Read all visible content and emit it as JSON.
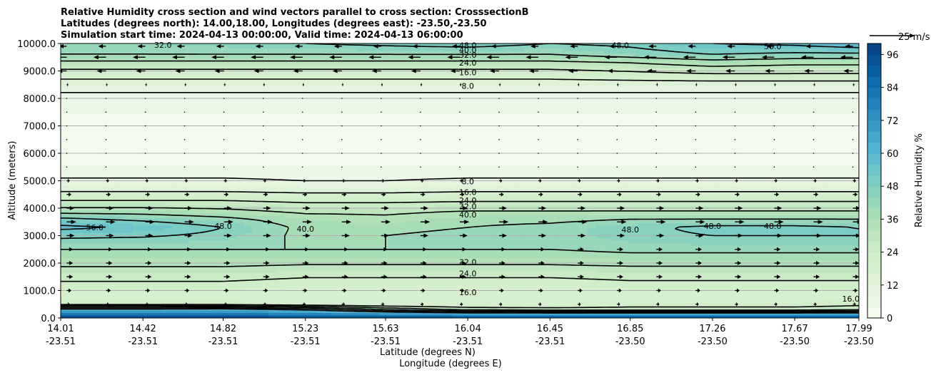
{
  "chart_data": {
    "type": "heatmap",
    "title_lines": [
      "Relative Humidity cross section and wind vectors parallel to cross section: CrosssectionB",
      "Latitudes (degrees north): 14.00,18.00, Longitudes (degrees east): -23.50,-23.50",
      "Simulation start time: 2024-04-13 00:00:00, Valid time: 2024-04-13 06:00:00"
    ],
    "xlabel_lat": "Latitude (degrees N)",
    "xlabel_lon": "Longitude (degrees E)",
    "ylabel": "Altitude (meters)",
    "xlim": [
      14.01,
      17.99
    ],
    "ylim": [
      0,
      10000
    ],
    "grid": "horizontal",
    "x_ticks": [
      {
        "lat": 14.01,
        "lat_label": "14.01",
        "lon_label": "-23.51"
      },
      {
        "lat": 14.42,
        "lat_label": "14.42",
        "lon_label": "-23.51"
      },
      {
        "lat": 14.82,
        "lat_label": "14.82",
        "lon_label": "-23.51"
      },
      {
        "lat": 15.23,
        "lat_label": "15.23",
        "lon_label": "-23.51"
      },
      {
        "lat": 15.63,
        "lat_label": "15.63",
        "lon_label": "-23.51"
      },
      {
        "lat": 16.04,
        "lat_label": "16.04",
        "lon_label": "-23.51"
      },
      {
        "lat": 16.45,
        "lat_label": "16.45",
        "lon_label": "-23.51"
      },
      {
        "lat": 16.85,
        "lat_label": "16.85",
        "lon_label": "-23.50"
      },
      {
        "lat": 17.26,
        "lat_label": "17.26",
        "lon_label": "-23.50"
      },
      {
        "lat": 17.67,
        "lat_label": "17.67",
        "lon_label": "-23.50"
      },
      {
        "lat": 17.99,
        "lat_label": "17.99",
        "lon_label": "-23.50"
      }
    ],
    "y_ticks": [
      0,
      1000,
      2000,
      3000,
      4000,
      5000,
      6000,
      7000,
      8000,
      9000,
      10000
    ],
    "y_tick_labels": [
      "0.0",
      "1000.0",
      "2000.0",
      "3000.0",
      "4000.0",
      "5000.0",
      "6000.0",
      "7000.0",
      "8000.0",
      "9000.0",
      "10000.0"
    ],
    "colorbar": {
      "label": "Relative Humidity %",
      "min": 0,
      "max": 100,
      "ticks": [
        0,
        12,
        24,
        36,
        48,
        60,
        72,
        84,
        96
      ],
      "tick_labels": [
        "0",
        "12",
        "24",
        "36",
        "48",
        "60",
        "72",
        "84",
        "96"
      ],
      "levels": 25,
      "colors": [
        "#f7fcf0",
        "#e0f3db",
        "#ccebc5",
        "#a8ddb5",
        "#7bccc4",
        "#4eb3d3",
        "#2b8cbe",
        "#0868ac",
        "#084081"
      ]
    },
    "wind_key": {
      "label": "25 m/s",
      "speed": 25
    },
    "rh_field": {
      "alt": [
        0,
        300,
        500,
        800,
        1200,
        1600,
        2000,
        2500,
        3000,
        3300,
        3600,
        3900,
        4200,
        4600,
        5000,
        5500,
        6000,
        7000,
        8000,
        8500,
        8900,
        9300,
        9600,
        10000
      ],
      "lat": [
        14.01,
        14.42,
        14.82,
        15.23,
        15.63,
        16.04,
        16.45,
        16.85,
        17.26,
        17.67,
        17.99
      ],
      "values": [
        [
          98,
          98,
          98,
          98,
          98,
          98,
          98,
          98,
          98,
          98,
          98
        ],
        [
          60,
          60,
          62,
          55,
          40,
          30,
          28,
          28,
          28,
          28,
          30
        ],
        [
          22,
          22,
          22,
          18,
          16,
          16,
          17,
          20,
          20,
          20,
          22
        ],
        [
          18,
          18,
          18,
          17,
          16,
          16,
          16,
          17,
          18,
          18,
          18
        ],
        [
          22,
          22,
          22,
          20,
          20,
          20,
          20,
          22,
          22,
          22,
          22
        ],
        [
          28,
          28,
          28,
          26,
          26,
          26,
          26,
          27,
          27,
          27,
          27
        ],
        [
          34,
          34,
          34,
          33,
          33,
          33,
          33,
          34,
          34,
          34,
          34
        ],
        [
          40,
          40,
          40,
          40,
          40,
          40,
          40,
          42,
          42,
          42,
          42
        ],
        [
          50,
          49,
          46,
          38,
          40,
          42,
          42,
          46,
          48,
          48,
          48
        ],
        [
          58,
          55,
          48,
          38,
          38,
          40,
          42,
          46,
          50,
          50,
          48
        ],
        [
          50,
          46,
          42,
          36,
          34,
          38,
          38,
          40,
          40,
          40,
          40
        ],
        [
          36,
          36,
          34,
          30,
          30,
          32,
          32,
          32,
          32,
          32,
          32
        ],
        [
          26,
          26,
          26,
          24,
          24,
          25,
          25,
          25,
          25,
          25,
          25
        ],
        [
          16,
          16,
          16,
          15,
          15,
          16,
          16,
          16,
          16,
          16,
          16
        ],
        [
          9,
          9,
          9,
          8,
          8,
          9,
          9,
          9,
          9,
          9,
          9
        ],
        [
          4,
          4,
          4,
          4,
          4,
          4,
          4,
          4,
          4,
          4,
          4
        ],
        [
          3,
          3,
          3,
          3,
          3,
          3,
          3,
          3,
          3,
          3,
          3
        ],
        [
          3,
          3,
          3,
          3,
          3,
          3,
          3,
          3,
          3,
          3,
          3
        ],
        [
          5,
          5,
          5,
          5,
          5,
          5,
          5,
          5,
          5,
          5,
          5
        ],
        [
          12,
          12,
          12,
          12,
          12,
          12,
          12,
          12,
          12,
          12,
          12
        ],
        [
          20,
          20,
          20,
          20,
          20,
          20,
          20,
          22,
          24,
          24,
          24
        ],
        [
          30,
          30,
          30,
          30,
          30,
          30,
          30,
          32,
          36,
          34,
          34
        ],
        [
          40,
          40,
          40,
          40,
          40,
          40,
          40,
          44,
          48,
          46,
          46
        ],
        [
          44,
          44,
          46,
          48,
          50,
          52,
          48,
          50,
          56,
          58,
          62
        ]
      ]
    },
    "contour_levels": [
      8,
      16,
      24,
      32,
      40,
      48,
      56
    ],
    "contour_labels": [
      {
        "text": "8.0",
        "lat": 16.04,
        "alt": 8450
      },
      {
        "text": "16.0",
        "lat": 16.04,
        "alt": 8950
      },
      {
        "text": "24.0",
        "lat": 16.04,
        "alt": 9300
      },
      {
        "text": "32.0",
        "lat": 16.04,
        "alt": 9580
      },
      {
        "text": "40.0",
        "lat": 16.04,
        "alt": 9760
      },
      {
        "text": "48.0",
        "lat": 16.04,
        "alt": 9940
      },
      {
        "text": "32.0",
        "lat": 14.52,
        "alt": 9950
      },
      {
        "text": "48.0",
        "lat": 16.8,
        "alt": 9930
      },
      {
        "text": "56.0",
        "lat": 17.56,
        "alt": 9900
      },
      {
        "text": "8.0",
        "lat": 16.04,
        "alt": 4970
      },
      {
        "text": "16.0",
        "lat": 16.04,
        "alt": 4590
      },
      {
        "text": "24.0",
        "lat": 16.04,
        "alt": 4290
      },
      {
        "text": "32.0",
        "lat": 16.04,
        "alt": 4070
      },
      {
        "text": "40.0",
        "lat": 16.04,
        "alt": 3760
      },
      {
        "text": "56.0",
        "lat": 14.18,
        "alt": 3300
      },
      {
        "text": "48.0",
        "lat": 14.82,
        "alt": 3350
      },
      {
        "text": "40.0",
        "lat": 15.23,
        "alt": 3250
      },
      {
        "text": "48.0",
        "lat": 16.85,
        "alt": 3220
      },
      {
        "text": "48.0",
        "lat": 17.26,
        "alt": 3350
      },
      {
        "text": "48.0",
        "lat": 17.56,
        "alt": 3350
      },
      {
        "text": "32.0",
        "lat": 16.04,
        "alt": 2040
      },
      {
        "text": "24.0",
        "lat": 16.04,
        "alt": 1620
      },
      {
        "text": "16.0",
        "lat": 16.04,
        "alt": 930
      },
      {
        "text": "16.0",
        "lat": 17.95,
        "alt": 700
      }
    ],
    "wind_rows": [
      {
        "alt": 9900,
        "u": -5
      },
      {
        "alt": 9500,
        "u": -8
      },
      {
        "alt": 9000,
        "u": -6
      },
      {
        "alt": 8500,
        "u": 1
      },
      {
        "alt": 8000,
        "u": 0.3
      },
      {
        "alt": 7500,
        "u": 0.2
      },
      {
        "alt": 7000,
        "u": 0.2
      },
      {
        "alt": 6500,
        "u": 0.2
      },
      {
        "alt": 6000,
        "u": 0.2
      },
      {
        "alt": 5500,
        "u": 0.5
      },
      {
        "alt": 5000,
        "u": 2
      },
      {
        "alt": 4500,
        "u": 3
      },
      {
        "alt": 4000,
        "u": 5
      },
      {
        "alt": 3500,
        "u": 6
      },
      {
        "alt": 3000,
        "u": 5
      },
      {
        "alt": 2500,
        "u": 4
      },
      {
        "alt": 2000,
        "u": 4
      },
      {
        "alt": 1500,
        "u": 4
      },
      {
        "alt": 1000,
        "u": 3
      },
      {
        "alt": 500,
        "u": 2
      }
    ]
  }
}
